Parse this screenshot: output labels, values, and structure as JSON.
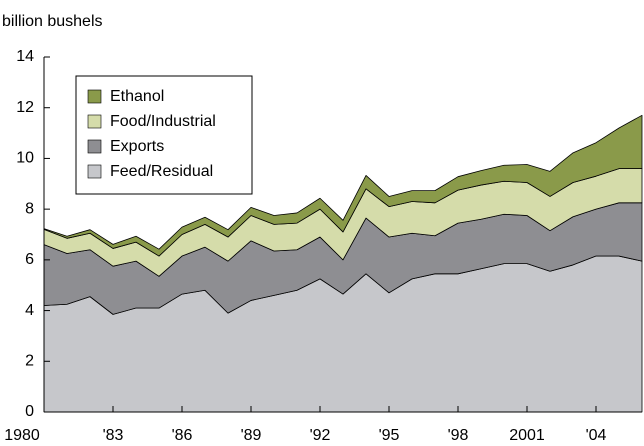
{
  "chart_data": {
    "type": "stacked_area",
    "y_label": "billion bushels",
    "x": [
      1980,
      1981,
      1982,
      1983,
      1984,
      1985,
      1986,
      1987,
      1988,
      1989,
      1990,
      1991,
      1992,
      1993,
      1994,
      1995,
      1996,
      1997,
      1998,
      1999,
      2000,
      2001,
      2002,
      2003,
      2004,
      2005,
      2006
    ],
    "series": [
      {
        "name": "Feed/Residual",
        "color": "#c6c7cb",
        "values": [
          4.2,
          4.25,
          4.55,
          3.85,
          4.1,
          4.1,
          4.65,
          4.8,
          3.9,
          4.4,
          4.6,
          4.8,
          5.25,
          4.65,
          5.45,
          4.7,
          5.25,
          5.45,
          5.45,
          5.65,
          5.85,
          5.85,
          5.55,
          5.8,
          6.15,
          6.15,
          5.95
        ]
      },
      {
        "name": "Exports",
        "color": "#8e8e92",
        "values": [
          2.4,
          2.0,
          1.85,
          1.9,
          1.85,
          1.25,
          1.5,
          1.7,
          2.05,
          2.35,
          1.75,
          1.6,
          1.65,
          1.35,
          2.2,
          2.2,
          1.8,
          1.5,
          2.0,
          1.95,
          1.95,
          1.9,
          1.6,
          1.9,
          1.85,
          2.1,
          2.3
        ]
      },
      {
        "name": "Food/Industrial",
        "color": "#d5dcaa",
        "values": [
          0.6,
          0.6,
          0.65,
          0.7,
          0.75,
          0.8,
          0.85,
          0.9,
          0.95,
          1.0,
          1.05,
          1.05,
          1.1,
          1.1,
          1.15,
          1.2,
          1.25,
          1.3,
          1.3,
          1.35,
          1.3,
          1.3,
          1.35,
          1.35,
          1.3,
          1.35,
          1.35
        ]
      },
      {
        "name": "Ethanol",
        "color": "#8a9a4a",
        "values": [
          0.03,
          0.08,
          0.14,
          0.16,
          0.23,
          0.27,
          0.29,
          0.28,
          0.29,
          0.32,
          0.35,
          0.4,
          0.43,
          0.46,
          0.53,
          0.4,
          0.43,
          0.48,
          0.53,
          0.57,
          0.63,
          0.71,
          0.99,
          1.17,
          1.32,
          1.6,
          2.1
        ]
      }
    ],
    "xlim": [
      1980,
      2006
    ],
    "xticks": [
      1980,
      {
        "value": 1983,
        "label": "'83"
      },
      {
        "value": 1986,
        "label": "'86"
      },
      {
        "value": 1989,
        "label": "'89"
      },
      {
        "value": 1992,
        "label": "'92"
      },
      {
        "value": 1995,
        "label": "'95"
      },
      {
        "value": 1998,
        "label": "'98"
      },
      2001,
      {
        "value": 2004,
        "label": "'04"
      }
    ],
    "ylim": [
      0,
      14
    ],
    "yticks": [
      0,
      2,
      4,
      6,
      8,
      10,
      12,
      14
    ],
    "legend": "upper-left"
  }
}
